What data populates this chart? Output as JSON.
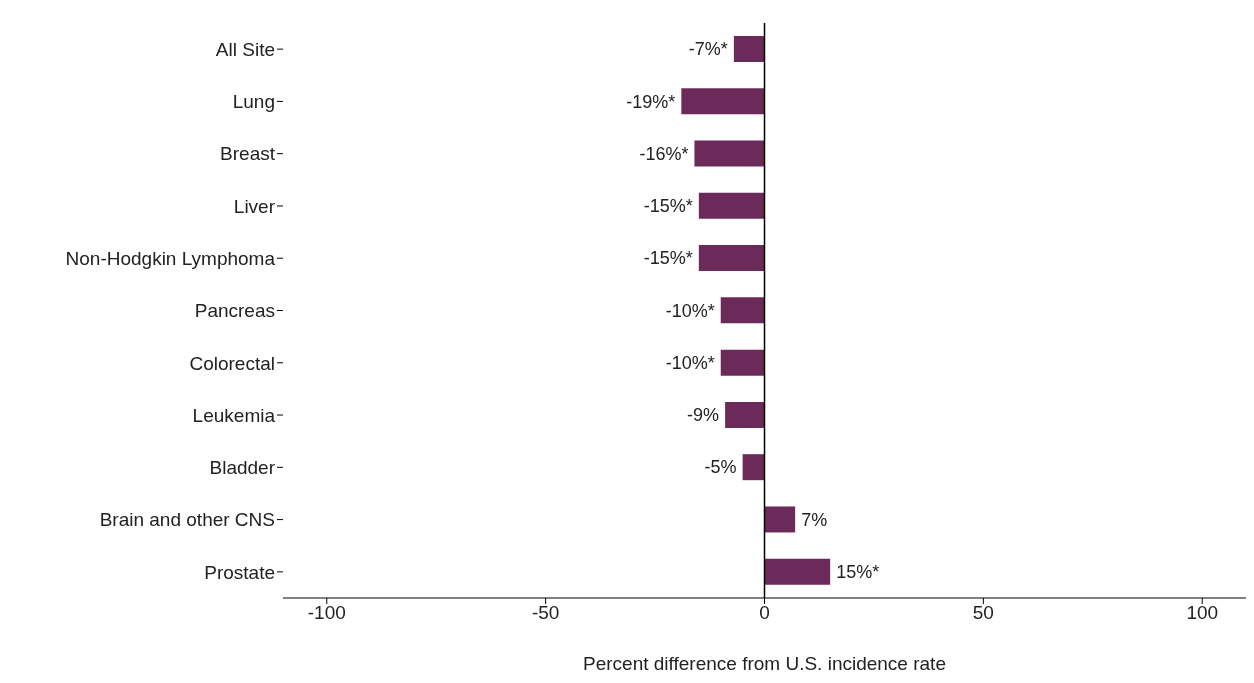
{
  "chart_data": {
    "type": "bar",
    "orientation": "horizontal",
    "xlabel": "Percent difference from U.S. incidence rate",
    "categories": [
      "All Site",
      "Lung",
      "Breast",
      "Liver",
      "Non-Hodgkin Lymphoma",
      "Pancreas",
      "Colorectal",
      "Leukemia",
      "Bladder",
      "Brain and other CNS",
      "Prostate"
    ],
    "values": [
      -7,
      -19,
      -16,
      -15,
      -15,
      -10,
      -10,
      -9,
      -5,
      7,
      15
    ],
    "value_labels": [
      "-7%*",
      "-19%*",
      "-16%*",
      "-15%*",
      "-15%*",
      "-10%*",
      "-10%*",
      "-9%",
      "-5%",
      "7%",
      "15%*"
    ],
    "color": "#6b2a5a",
    "xlim": [
      -110,
      110
    ],
    "xticks": [
      -100,
      -50,
      0,
      50,
      100
    ],
    "ref_lines": [
      {
        "axis": "x",
        "value": 0,
        "color": "#000000"
      }
    ],
    "grid": false,
    "legend": false
  }
}
